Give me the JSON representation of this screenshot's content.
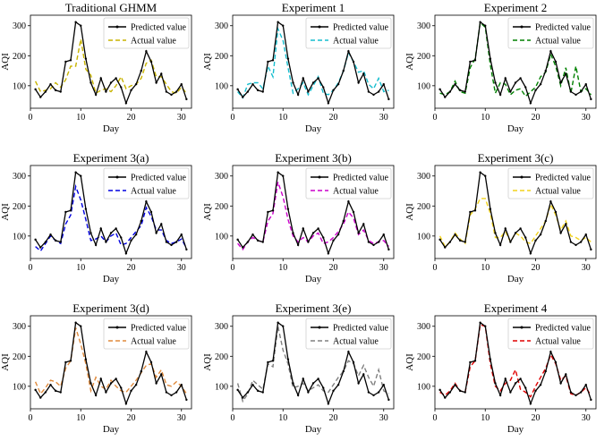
{
  "figure": {
    "legend_labels": [
      "Predicted value",
      "Actual value"
    ],
    "xlabel": "Day",
    "ylabel": "AQI"
  },
  "chart_data": [
    {
      "type": "line",
      "title": "Traditional GHMM",
      "xlabel": "Day",
      "ylabel": "AQI",
      "xlim": [
        0,
        32
      ],
      "ylim": [
        25,
        335
      ],
      "xticks": [
        0,
        10,
        20,
        30
      ],
      "yticks": [
        100,
        200,
        300
      ],
      "legend_position": "top-right",
      "x": [
        1,
        2,
        3,
        4,
        5,
        6,
        7,
        8,
        9,
        10,
        11,
        12,
        13,
        14,
        15,
        16,
        17,
        18,
        19,
        20,
        21,
        22,
        23,
        24,
        25,
        26,
        27,
        28,
        29,
        30,
        31
      ],
      "series": [
        {
          "name": "Predicted value",
          "color": "#000000",
          "style": "solid-marker",
          "values": [
            88,
            62,
            80,
            105,
            85,
            80,
            180,
            185,
            312,
            300,
            190,
            110,
            70,
            125,
            80,
            110,
            125,
            95,
            42,
            85,
            105,
            150,
            215,
            180,
            110,
            140,
            80,
            70,
            80,
            105,
            55
          ]
        },
        {
          "name": "Actual value",
          "color": "#c8b400",
          "style": "dashed",
          "values": [
            115,
            80,
            85,
            90,
            110,
            95,
            120,
            165,
            165,
            255,
            155,
            135,
            75,
            85,
            90,
            80,
            100,
            130,
            90,
            100,
            105,
            125,
            175,
            185,
            130,
            130,
            105,
            80,
            75,
            95,
            75
          ]
        }
      ]
    },
    {
      "type": "line",
      "title": "Experiment 1",
      "xlabel": "Day",
      "ylabel": "AQI",
      "xlim": [
        0,
        32
      ],
      "ylim": [
        25,
        335
      ],
      "xticks": [
        0,
        10,
        20,
        30
      ],
      "yticks": [
        100,
        200,
        300
      ],
      "legend_position": "top-right",
      "x": [
        1,
        2,
        3,
        4,
        5,
        6,
        7,
        8,
        9,
        10,
        11,
        12,
        13,
        14,
        15,
        16,
        17,
        18,
        19,
        20,
        21,
        22,
        23,
        24,
        25,
        26,
        27,
        28,
        29,
        30,
        31
      ],
      "series": [
        {
          "name": "Predicted value",
          "color": "#000000",
          "style": "solid-marker",
          "values": [
            88,
            62,
            80,
            105,
            85,
            80,
            180,
            185,
            312,
            300,
            190,
            110,
            70,
            125,
            80,
            110,
            125,
            95,
            42,
            85,
            105,
            150,
            215,
            180,
            110,
            140,
            80,
            70,
            80,
            105,
            55
          ]
        },
        {
          "name": "Actual value",
          "color": "#17becf",
          "style": "dashed",
          "values": [
            80,
            60,
            105,
            110,
            110,
            90,
            165,
            130,
            290,
            250,
            160,
            75,
            90,
            110,
            70,
            100,
            130,
            75,
            70,
            85,
            110,
            150,
            210,
            180,
            145,
            150,
            105,
            90,
            125,
            80,
            85
          ]
        }
      ]
    },
    {
      "type": "line",
      "title": "Experiment 2",
      "xlabel": "Day",
      "ylabel": "AQI",
      "xlim": [
        0,
        32
      ],
      "ylim": [
        25,
        335
      ],
      "xticks": [
        0,
        10,
        20,
        30
      ],
      "yticks": [
        100,
        200,
        300
      ],
      "legend_position": "top-right",
      "x": [
        1,
        2,
        3,
        4,
        5,
        6,
        7,
        8,
        9,
        10,
        11,
        12,
        13,
        14,
        15,
        16,
        17,
        18,
        19,
        20,
        21,
        22,
        23,
        24,
        25,
        26,
        27,
        28,
        29,
        30,
        31
      ],
      "series": [
        {
          "name": "Predicted value",
          "color": "#000000",
          "style": "solid-marker",
          "values": [
            88,
            62,
            80,
            105,
            85,
            80,
            180,
            185,
            312,
            300,
            190,
            110,
            70,
            125,
            80,
            110,
            125,
            95,
            42,
            85,
            105,
            150,
            215,
            180,
            110,
            140,
            80,
            70,
            80,
            105,
            55
          ]
        },
        {
          "name": "Actual value",
          "color": "#008000",
          "style": "dashed",
          "values": [
            75,
            70,
            80,
            115,
            80,
            75,
            160,
            190,
            310,
            295,
            170,
            75,
            110,
            105,
            70,
            85,
            90,
            65,
            80,
            95,
            130,
            145,
            205,
            165,
            100,
            160,
            75,
            165,
            80,
            90,
            70
          ]
        }
      ]
    },
    {
      "type": "line",
      "title": "Experiment 3(a)",
      "xlabel": "Day",
      "ylabel": "AQI",
      "xlim": [
        0,
        32
      ],
      "ylim": [
        25,
        335
      ],
      "xticks": [
        0,
        10,
        20,
        30
      ],
      "yticks": [
        100,
        200,
        300
      ],
      "legend_position": "top-right",
      "x": [
        1,
        2,
        3,
        4,
        5,
        6,
        7,
        8,
        9,
        10,
        11,
        12,
        13,
        14,
        15,
        16,
        17,
        18,
        19,
        20,
        21,
        22,
        23,
        24,
        25,
        26,
        27,
        28,
        29,
        30,
        31
      ],
      "series": [
        {
          "name": "Predicted value",
          "color": "#000000",
          "style": "solid-marker",
          "values": [
            88,
            62,
            80,
            105,
            85,
            80,
            180,
            185,
            312,
            300,
            190,
            110,
            70,
            125,
            80,
            110,
            125,
            95,
            42,
            85,
            105,
            150,
            215,
            180,
            110,
            140,
            80,
            70,
            80,
            105,
            55
          ]
        },
        {
          "name": "Actual value",
          "color": "#0000e0",
          "style": "dashed",
          "values": [
            65,
            50,
            75,
            100,
            85,
            75,
            140,
            170,
            265,
            220,
            155,
            85,
            90,
            100,
            80,
            100,
            110,
            70,
            75,
            95,
            115,
            135,
            195,
            165,
            120,
            120,
            85,
            75,
            80,
            90,
            60
          ]
        }
      ]
    },
    {
      "type": "line",
      "title": "Experiment 3(b)",
      "xlabel": "Day",
      "ylabel": "AQI",
      "xlim": [
        0,
        32
      ],
      "ylim": [
        25,
        335
      ],
      "xticks": [
        0,
        10,
        20,
        30
      ],
      "yticks": [
        100,
        200,
        300
      ],
      "legend_position": "top-right",
      "x": [
        1,
        2,
        3,
        4,
        5,
        6,
        7,
        8,
        9,
        10,
        11,
        12,
        13,
        14,
        15,
        16,
        17,
        18,
        19,
        20,
        21,
        22,
        23,
        24,
        25,
        26,
        27,
        28,
        29,
        30,
        31
      ],
      "series": [
        {
          "name": "Predicted value",
          "color": "#000000",
          "style": "solid-marker",
          "values": [
            88,
            62,
            80,
            105,
            85,
            80,
            180,
            185,
            312,
            300,
            190,
            110,
            70,
            125,
            80,
            110,
            125,
            95,
            42,
            85,
            105,
            150,
            215,
            180,
            110,
            140,
            80,
            70,
            80,
            105,
            55
          ]
        },
        {
          "name": "Actual value",
          "color": "#cc00cc",
          "style": "dashed",
          "values": [
            75,
            55,
            80,
            95,
            85,
            80,
            150,
            175,
            280,
            230,
            155,
            100,
            80,
            95,
            80,
            100,
            110,
            75,
            80,
            95,
            115,
            140,
            180,
            160,
            105,
            120,
            85,
            75,
            80,
            85,
            65
          ]
        }
      ]
    },
    {
      "type": "line",
      "title": "Experiment 3(c)",
      "xlabel": "Day",
      "ylabel": "AQI",
      "xlim": [
        0,
        32
      ],
      "ylim": [
        25,
        335
      ],
      "xticks": [
        0,
        10,
        20,
        30
      ],
      "yticks": [
        100,
        200,
        300
      ],
      "legend_position": "top-right",
      "x": [
        1,
        2,
        3,
        4,
        5,
        6,
        7,
        8,
        9,
        10,
        11,
        12,
        13,
        14,
        15,
        16,
        17,
        18,
        19,
        20,
        21,
        22,
        23,
        24,
        25,
        26,
        27,
        28,
        29,
        30,
        31
      ],
      "series": [
        {
          "name": "Predicted value",
          "color": "#000000",
          "style": "solid-marker",
          "values": [
            88,
            62,
            80,
            105,
            85,
            80,
            180,
            185,
            312,
            300,
            190,
            110,
            70,
            125,
            80,
            110,
            125,
            95,
            42,
            85,
            105,
            150,
            215,
            180,
            110,
            140,
            80,
            70,
            80,
            105,
            55
          ]
        },
        {
          "name": "Actual value",
          "color": "#f2d21b",
          "style": "dashed",
          "values": [
            100,
            65,
            80,
            110,
            90,
            75,
            170,
            190,
            225,
            225,
            175,
            95,
            95,
            115,
            80,
            110,
            100,
            80,
            75,
            100,
            125,
            150,
            205,
            170,
            120,
            150,
            100,
            95,
            85,
            95,
            80
          ]
        }
      ]
    },
    {
      "type": "line",
      "title": "Experiment 3(d)",
      "xlabel": "Day",
      "ylabel": "AQI",
      "xlim": [
        0,
        32
      ],
      "ylim": [
        25,
        335
      ],
      "xticks": [
        0,
        10,
        20,
        30
      ],
      "yticks": [
        100,
        200,
        300
      ],
      "legend_position": "top-right",
      "x": [
        1,
        2,
        3,
        4,
        5,
        6,
        7,
        8,
        9,
        10,
        11,
        12,
        13,
        14,
        15,
        16,
        17,
        18,
        19,
        20,
        21,
        22,
        23,
        24,
        25,
        26,
        27,
        28,
        29,
        30,
        31
      ],
      "series": [
        {
          "name": "Predicted value",
          "color": "#000000",
          "style": "solid-marker",
          "values": [
            88,
            62,
            80,
            105,
            85,
            80,
            180,
            185,
            312,
            300,
            190,
            110,
            70,
            125,
            80,
            110,
            125,
            95,
            42,
            85,
            105,
            150,
            215,
            180,
            110,
            140,
            80,
            70,
            80,
            105,
            55
          ]
        },
        {
          "name": "Actual value",
          "color": "#e08a3c",
          "style": "dashed",
          "values": [
            115,
            75,
            95,
            120,
            115,
            100,
            160,
            185,
            295,
            240,
            175,
            85,
            130,
            100,
            90,
            120,
            100,
            85,
            80,
            100,
            120,
            145,
            170,
            175,
            130,
            155,
            105,
            100,
            115,
            100,
            75
          ]
        }
      ]
    },
    {
      "type": "line",
      "title": "Experiment 3(e)",
      "xlabel": "Day",
      "ylabel": "AQI",
      "xlim": [
        0,
        32
      ],
      "ylim": [
        25,
        335
      ],
      "xticks": [
        0,
        10,
        20,
        30
      ],
      "yticks": [
        100,
        200,
        300
      ],
      "legend_position": "top-right",
      "x": [
        1,
        2,
        3,
        4,
        5,
        6,
        7,
        8,
        9,
        10,
        11,
        12,
        13,
        14,
        15,
        16,
        17,
        18,
        19,
        20,
        21,
        22,
        23,
        24,
        25,
        26,
        27,
        28,
        29,
        30,
        31
      ],
      "series": [
        {
          "name": "Predicted value",
          "color": "#000000",
          "style": "solid-marker",
          "values": [
            88,
            62,
            80,
            105,
            85,
            80,
            180,
            185,
            312,
            300,
            190,
            110,
            70,
            125,
            80,
            110,
            125,
            95,
            42,
            85,
            105,
            150,
            215,
            180,
            110,
            140,
            80,
            70,
            80,
            105,
            55
          ]
        },
        {
          "name": "Actual value",
          "color": "#808080",
          "style": "dashed",
          "values": [
            110,
            50,
            75,
            120,
            105,
            90,
            175,
            165,
            300,
            220,
            175,
            95,
            100,
            110,
            85,
            95,
            105,
            85,
            80,
            105,
            130,
            150,
            185,
            175,
            135,
            170,
            130,
            100,
            155,
            85,
            75
          ]
        }
      ]
    },
    {
      "type": "line",
      "title": "Experiment 4",
      "xlabel": "Day",
      "ylabel": "AQI",
      "xlim": [
        0,
        32
      ],
      "ylim": [
        25,
        335
      ],
      "xticks": [
        0,
        10,
        20,
        30
      ],
      "yticks": [
        100,
        200,
        300
      ],
      "legend_position": "top-right",
      "x": [
        1,
        2,
        3,
        4,
        5,
        6,
        7,
        8,
        9,
        10,
        11,
        12,
        13,
        14,
        15,
        16,
        17,
        18,
        19,
        20,
        21,
        22,
        23,
        24,
        25,
        26,
        27,
        28,
        29,
        30,
        31
      ],
      "series": [
        {
          "name": "Predicted value",
          "color": "#000000",
          "style": "solid-marker",
          "values": [
            88,
            62,
            80,
            105,
            85,
            80,
            180,
            185,
            312,
            300,
            190,
            110,
            70,
            125,
            80,
            110,
            125,
            95,
            42,
            85,
            105,
            150,
            215,
            180,
            110,
            140,
            80,
            70,
            80,
            105,
            55
          ]
        },
        {
          "name": "Actual value",
          "color": "#e00000",
          "style": "dashed",
          "values": [
            80,
            70,
            85,
            110,
            85,
            80,
            165,
            185,
            305,
            300,
            175,
            100,
            85,
            110,
            120,
            155,
            90,
            80,
            65,
            100,
            130,
            160,
            205,
            175,
            120,
            135,
            75,
            70,
            80,
            95,
            70
          ]
        }
      ]
    }
  ]
}
